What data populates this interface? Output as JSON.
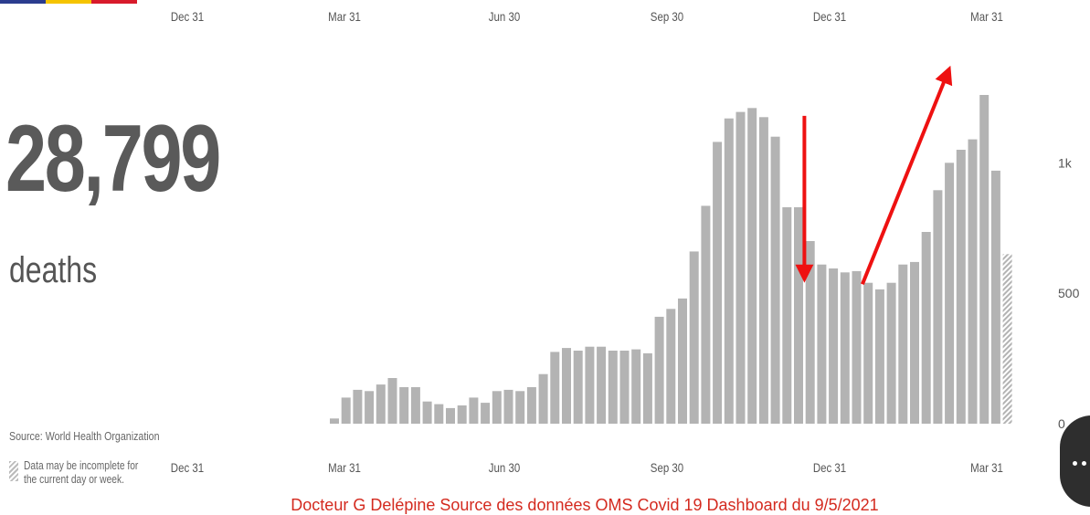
{
  "colors": {
    "bar": "#b3b3b3",
    "arrow": "#ee1111",
    "caption": "#d42a1f",
    "flag": [
      "#2b3d8f",
      "#f5c400",
      "#d81b2b"
    ]
  },
  "header": {
    "date_labels": [
      "Dec 31",
      "Mar 31",
      "Jun 30",
      "Sep 30",
      "Dec 31",
      "Mar 31"
    ]
  },
  "summary": {
    "value": "28,799",
    "label": "deaths",
    "source": "Source: World Health Organization",
    "legend_text": "Data may be incomplete for the current day or week."
  },
  "caption": "Docteur G Delépine Source des données OMS Covid 19 Dashboard du 9/5/2021",
  "icons": {
    "chat": "chat-bubble-icon",
    "legend": "hatched-swatch-icon"
  },
  "chart_data": {
    "type": "bar",
    "title": "",
    "xlabel": "",
    "ylabel": "",
    "x_tick_labels": [
      "Dec 31",
      "Mar 31",
      "Jun 30",
      "Sep 30",
      "Dec 31",
      "Mar 31"
    ],
    "y_tick_labels": [
      "0",
      "500",
      "1k"
    ],
    "ylim": [
      0,
      1300
    ],
    "grid": false,
    "legend": "bottom-left",
    "values": [
      20,
      100,
      130,
      125,
      150,
      175,
      140,
      140,
      85,
      75,
      60,
      70,
      100,
      80,
      125,
      130,
      125,
      140,
      190,
      275,
      290,
      280,
      295,
      295,
      280,
      280,
      285,
      270,
      410,
      440,
      480,
      660,
      835,
      1080,
      1170,
      1195,
      1210,
      1175,
      1100,
      830,
      830,
      700,
      610,
      595,
      580,
      585,
      540,
      515,
      540,
      610,
      620,
      735,
      895,
      1000,
      1050,
      1090,
      1260,
      970,
      650
    ],
    "incomplete_last": true,
    "annotations": [
      {
        "type": "arrow",
        "from_index": 40.5,
        "from_value": 1180,
        "to_index": 40.5,
        "to_value": 575
      },
      {
        "type": "arrow",
        "from_index": 45.5,
        "from_value": 535,
        "to_index": 52.8,
        "to_value": 1340
      }
    ]
  }
}
